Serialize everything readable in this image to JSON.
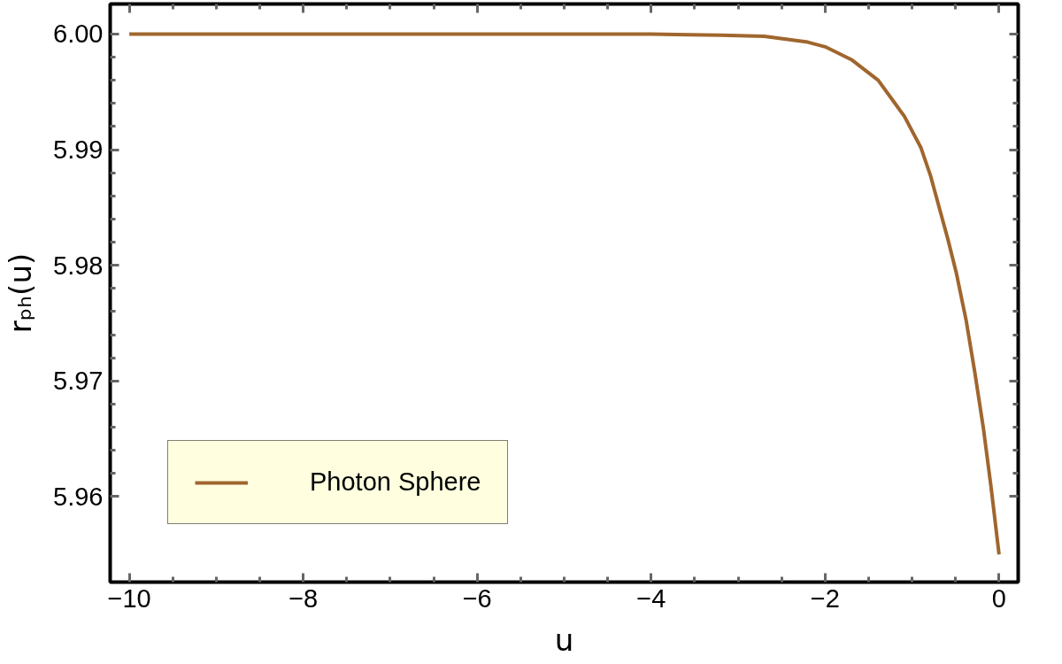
{
  "chart_data": {
    "type": "line",
    "xlabel": "u",
    "ylabel": "rₚₕ(u)",
    "xlim": [
      -10.22,
      0.22
    ],
    "ylim": [
      5.9526,
      6.0026
    ],
    "xticks": [
      {
        "value": -10,
        "label": "−10"
      },
      {
        "value": -8,
        "label": "−8"
      },
      {
        "value": -6,
        "label": "−6"
      },
      {
        "value": -4,
        "label": "−4"
      },
      {
        "value": -2,
        "label": "−2"
      },
      0
    ],
    "yticks": [
      {
        "value": 5.96,
        "label": "5.96"
      },
      {
        "value": 5.97,
        "label": "5.97"
      },
      {
        "value": 5.98,
        "label": "5.98"
      },
      {
        "value": 5.99,
        "label": "5.99"
      },
      {
        "value": 6.0,
        "label": "6.00"
      }
    ],
    "grid": false,
    "legend": "bottom left",
    "marker": "none",
    "line_style": "solid",
    "x": [
      -10,
      -8,
      -6,
      -5,
      -4,
      -3.2,
      -2.7,
      -2.2,
      -2.0,
      -1.7,
      -1.39,
      -1.09,
      -0.9,
      -0.79,
      -0.59,
      -0.49,
      -0.38,
      -0.28,
      -0.18,
      -0.09,
      0
    ],
    "series": [
      {
        "name": "Photon Sphere",
        "color": "#a0662e",
        "values": [
          6.0,
          6.0,
          6.0,
          6.0,
          6.0,
          5.9999,
          5.9998,
          5.9993,
          5.9989,
          5.9978,
          5.996,
          5.9929,
          5.9902,
          5.9878,
          5.9823,
          5.9793,
          5.9753,
          5.9708,
          5.9659,
          5.9607,
          5.955
        ]
      }
    ]
  }
}
